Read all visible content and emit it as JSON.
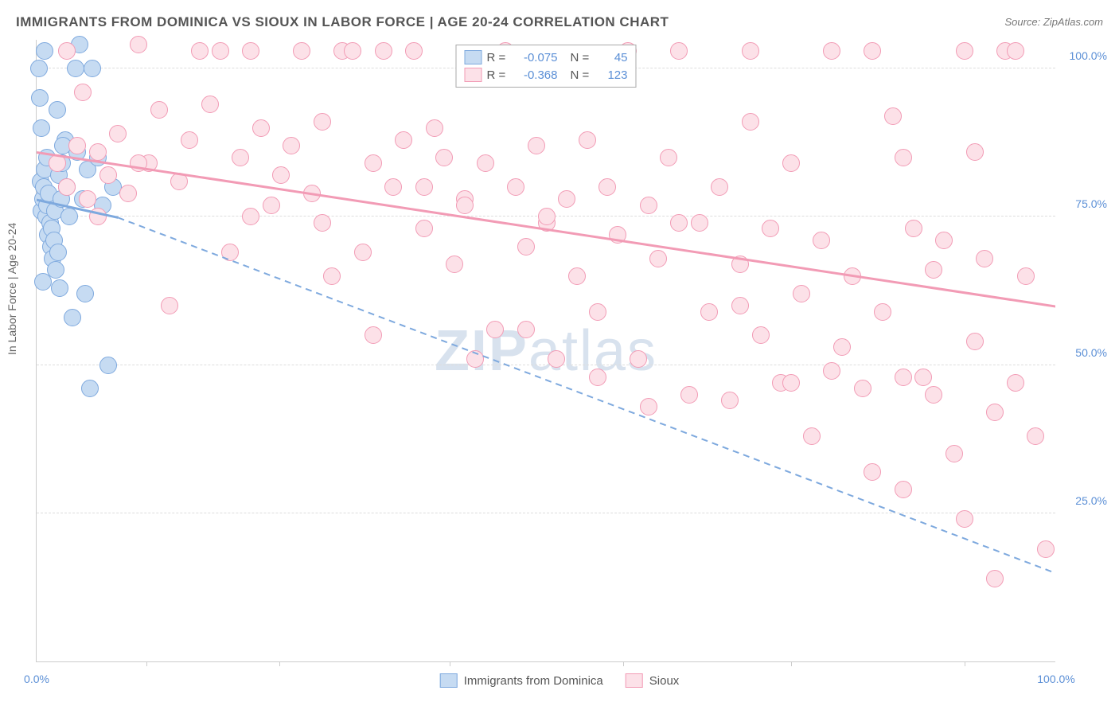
{
  "title": "IMMIGRANTS FROM DOMINICA VS SIOUX IN LABOR FORCE | AGE 20-24 CORRELATION CHART",
  "source": "Source: ZipAtlas.com",
  "watermark_a": "ZIP",
  "watermark_b": "atlas",
  "ylabel": "In Labor Force | Age 20-24",
  "chart": {
    "type": "scatter",
    "xlim": [
      0,
      100
    ],
    "ylim": [
      0,
      105
    ],
    "ytick_labels": [
      "25.0%",
      "50.0%",
      "75.0%",
      "100.0%"
    ],
    "ytick_values": [
      25,
      50,
      75,
      100
    ],
    "xtick_labels": [
      "0.0%",
      "100.0%"
    ],
    "xtick_values": [
      0,
      100
    ],
    "xtick_marks": [
      10.8,
      23.8,
      40.5,
      57.5,
      74,
      91
    ],
    "background_color": "#ffffff",
    "grid_color": "#dddddd",
    "point_radius": 10,
    "series": [
      {
        "name": "Immigrants from Dominica",
        "color_fill": "#c6dbf2",
        "color_stroke": "#7ea9de",
        "R": "-0.075",
        "N": "45",
        "trend_solid": {
          "x1": 0,
          "y1": 78,
          "x2": 8,
          "y2": 75
        },
        "trend_dashed": {
          "x1": 8,
          "y1": 75,
          "x2": 100,
          "y2": 15
        },
        "points": [
          [
            0.2,
            100
          ],
          [
            0.4,
            81
          ],
          [
            0.5,
            76
          ],
          [
            0.6,
            78
          ],
          [
            0.7,
            80
          ],
          [
            0.8,
            83
          ],
          [
            0.9,
            75
          ],
          [
            1.0,
            77
          ],
          [
            1.1,
            72
          ],
          [
            1.2,
            79
          ],
          [
            1.3,
            74
          ],
          [
            1.4,
            70
          ],
          [
            1.5,
            73
          ],
          [
            1.6,
            68
          ],
          [
            1.7,
            71
          ],
          [
            1.8,
            76
          ],
          [
            1.9,
            66
          ],
          [
            2.0,
            93
          ],
          [
            2.1,
            69
          ],
          [
            2.2,
            82
          ],
          [
            2.3,
            63
          ],
          [
            2.4,
            78
          ],
          [
            2.5,
            84
          ],
          [
            2.8,
            88
          ],
          [
            3.0,
            80
          ],
          [
            3.2,
            75
          ],
          [
            3.5,
            58
          ],
          [
            3.8,
            100
          ],
          [
            4.0,
            86
          ],
          [
            4.2,
            104
          ],
          [
            4.5,
            78
          ],
          [
            4.8,
            62
          ],
          [
            5.0,
            83
          ],
          [
            5.2,
            46
          ],
          [
            5.5,
            100
          ],
          [
            6.0,
            85
          ],
          [
            6.5,
            77
          ],
          [
            7.0,
            50
          ],
          [
            7.5,
            80
          ],
          [
            2.6,
            87
          ],
          [
            1.0,
            85
          ],
          [
            0.5,
            90
          ],
          [
            0.3,
            95
          ],
          [
            0.8,
            103
          ],
          [
            0.6,
            64
          ]
        ]
      },
      {
        "name": "Sioux",
        "color_fill": "#fce1e8",
        "color_stroke": "#f29bb5",
        "R": "-0.368",
        "N": "123",
        "trend_solid": {
          "x1": 0,
          "y1": 86,
          "x2": 100,
          "y2": 60
        },
        "points": [
          [
            2,
            84
          ],
          [
            3,
            80
          ],
          [
            4,
            87
          ],
          [
            5,
            78
          ],
          [
            6,
            86
          ],
          [
            7,
            82
          ],
          [
            8,
            89
          ],
          [
            9,
            79
          ],
          [
            10,
            104
          ],
          [
            11,
            84
          ],
          [
            12,
            93
          ],
          [
            13,
            60
          ],
          [
            14,
            81
          ],
          [
            3,
            103
          ],
          [
            4.5,
            96
          ],
          [
            15,
            88
          ],
          [
            16,
            103
          ],
          [
            17,
            94
          ],
          [
            18,
            103
          ],
          [
            19,
            69
          ],
          [
            20,
            85
          ],
          [
            21,
            103
          ],
          [
            22,
            90
          ],
          [
            23,
            77
          ],
          [
            24,
            82
          ],
          [
            25,
            87
          ],
          [
            26,
            103
          ],
          [
            27,
            79
          ],
          [
            28,
            91
          ],
          [
            29,
            65
          ],
          [
            30,
            103
          ],
          [
            31,
            103
          ],
          [
            21,
            75
          ],
          [
            32,
            69
          ],
          [
            33,
            84
          ],
          [
            34,
            103
          ],
          [
            35,
            80
          ],
          [
            36,
            88
          ],
          [
            37,
            103
          ],
          [
            38,
            73
          ],
          [
            39,
            90
          ],
          [
            40,
            85
          ],
          [
            41,
            67
          ],
          [
            42,
            78
          ],
          [
            43,
            51
          ],
          [
            44,
            84
          ],
          [
            45,
            56
          ],
          [
            46,
            103
          ],
          [
            47,
            80
          ],
          [
            48,
            70
          ],
          [
            49,
            87
          ],
          [
            50,
            74
          ],
          [
            51,
            51
          ],
          [
            52,
            78
          ],
          [
            53,
            65
          ],
          [
            54,
            88
          ],
          [
            55,
            59
          ],
          [
            56,
            80
          ],
          [
            57,
            72
          ],
          [
            58,
            103
          ],
          [
            59,
            51
          ],
          [
            60,
            77
          ],
          [
            61,
            68
          ],
          [
            62,
            85
          ],
          [
            63,
            103
          ],
          [
            64,
            45
          ],
          [
            65,
            74
          ],
          [
            66,
            59
          ],
          [
            67,
            80
          ],
          [
            68,
            44
          ],
          [
            69,
            67
          ],
          [
            70,
            103
          ],
          [
            71,
            55
          ],
          [
            72,
            73
          ],
          [
            73,
            47
          ],
          [
            74,
            84
          ],
          [
            75,
            62
          ],
          [
            76,
            38
          ],
          [
            77,
            71
          ],
          [
            78,
            103
          ],
          [
            79,
            53
          ],
          [
            80,
            65
          ],
          [
            81,
            46
          ],
          [
            82,
            103
          ],
          [
            83,
            59
          ],
          [
            84,
            92
          ],
          [
            85,
            29
          ],
          [
            86,
            73
          ],
          [
            87,
            48
          ],
          [
            88,
            66
          ],
          [
            89,
            71
          ],
          [
            90,
            35
          ],
          [
            91,
            103
          ],
          [
            92,
            54
          ],
          [
            93,
            68
          ],
          [
            94,
            42
          ],
          [
            95,
            103
          ],
          [
            96,
            47
          ],
          [
            97,
            65
          ],
          [
            98,
            38
          ],
          [
            99,
            19
          ],
          [
            94,
            14
          ],
          [
            85,
            85
          ],
          [
            91,
            24
          ],
          [
            85,
            48
          ],
          [
            70,
            91
          ],
          [
            63,
            74
          ],
          [
            50,
            75
          ],
          [
            42,
            77
          ],
          [
            82,
            32
          ],
          [
            88,
            45
          ],
          [
            78,
            49
          ],
          [
            74,
            47
          ],
          [
            69,
            60
          ],
          [
            60,
            43
          ],
          [
            55,
            48
          ],
          [
            48,
            56
          ],
          [
            38,
            80
          ],
          [
            33,
            55
          ],
          [
            28,
            74
          ],
          [
            10,
            84
          ],
          [
            6,
            75
          ],
          [
            96,
            103
          ],
          [
            92,
            86
          ]
        ]
      }
    ],
    "legend_top": {
      "labels": {
        "R": "R =",
        "N": "N ="
      }
    },
    "legend_bottom": [
      {
        "label": "Immigrants from Dominica",
        "series": 0
      },
      {
        "label": "Sioux",
        "series": 1
      }
    ]
  }
}
